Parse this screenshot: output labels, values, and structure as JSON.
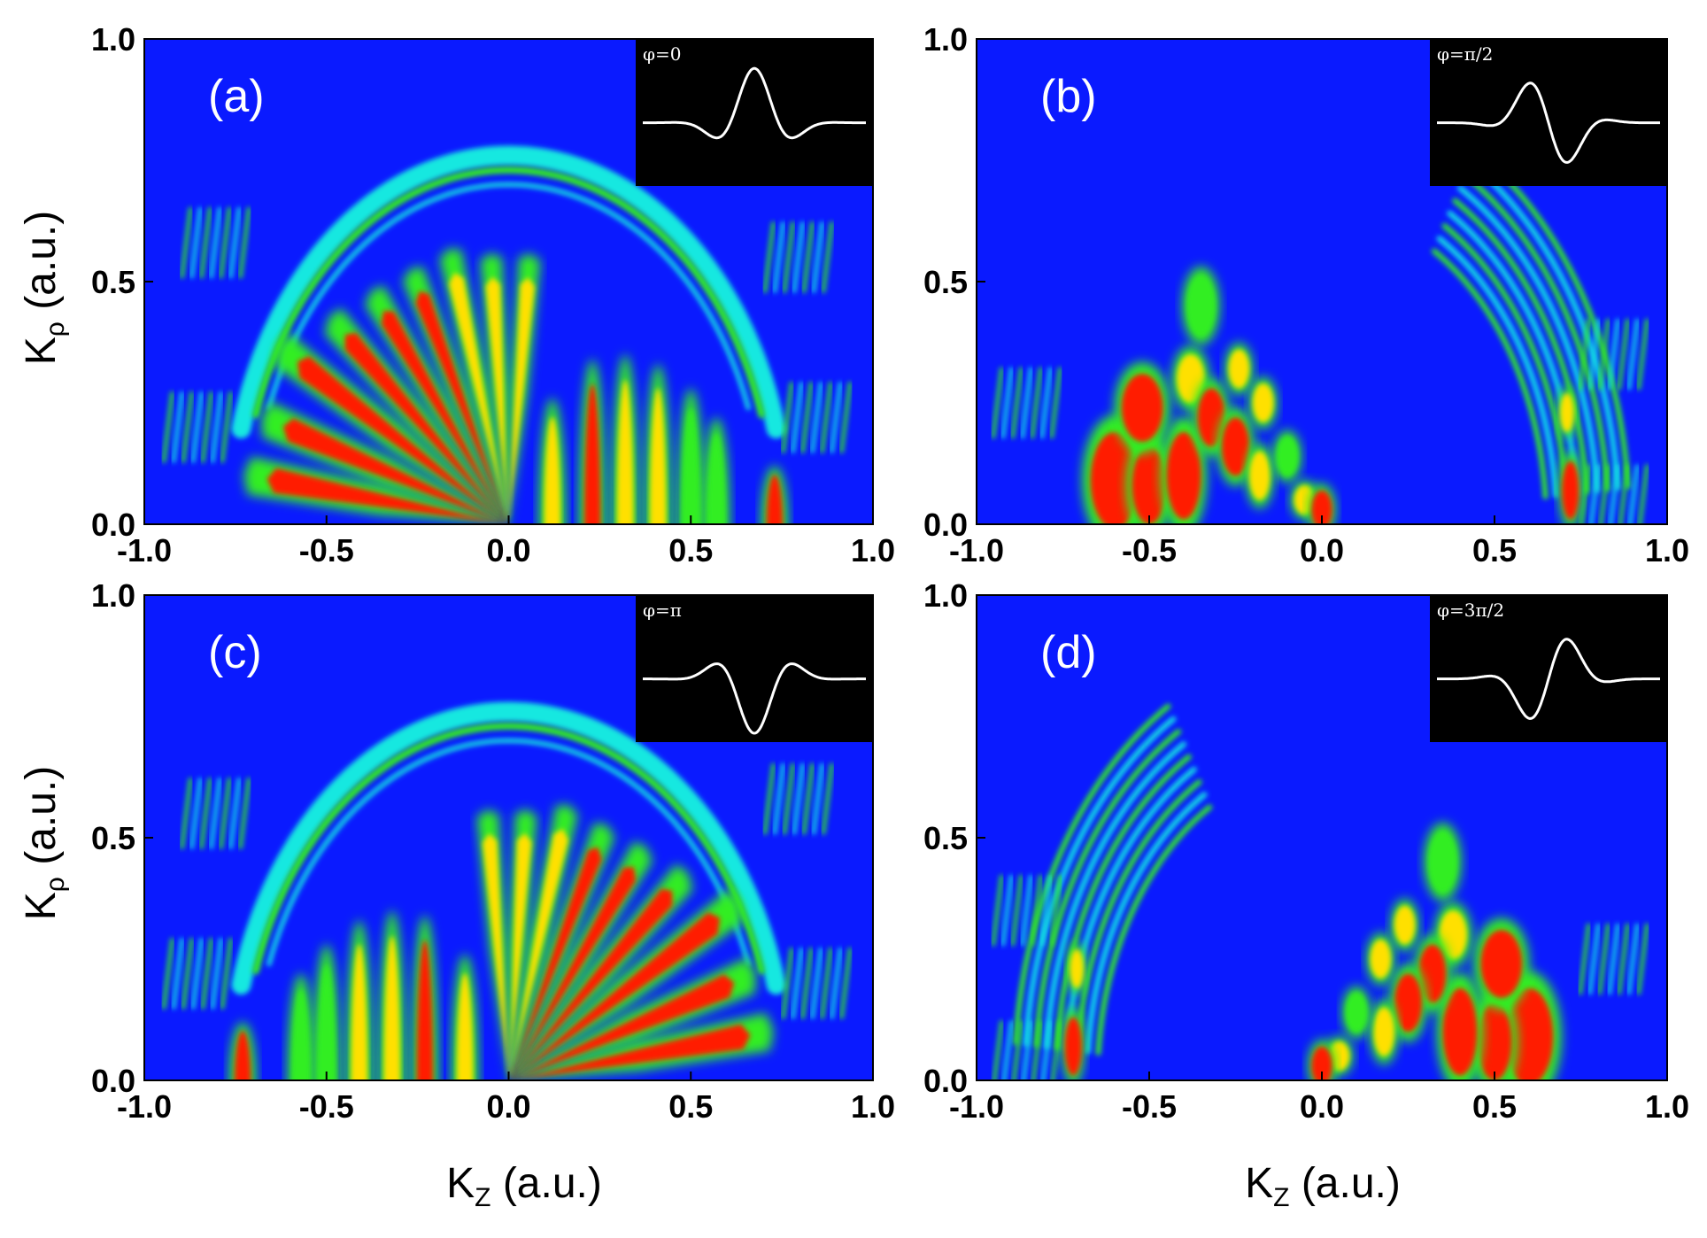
{
  "chart_data": {
    "type": "heatmap",
    "colors": {
      "background": "#0a1aff",
      "low": "#15e8e0",
      "mid": "#33ee22",
      "high": "#ffe000",
      "peak": "#ff1a00",
      "inset_background": "#000000",
      "inset_line": "#ffffff"
    },
    "xlabel_left": "K",
    "xlabel_left_sub": "Z",
    "xlabel_left_unit": " (a.u.)",
    "xlabel_right": "K",
    "xlabel_right_sub": "Z",
    "xlabel_right_unit": " (a.u.)",
    "ylabel_top": "K",
    "ylabel_top_sub": "ρ",
    "ylabel_top_unit": " (a.u.)",
    "ylabel_bottom": "K",
    "ylabel_bottom_sub": "ρ",
    "ylabel_bottom_unit": " (a.u.)",
    "xlim": [
      -1.0,
      1.0
    ],
    "ylim": [
      0.0,
      1.0
    ],
    "x_ticks": [
      "-1.0",
      "-0.5",
      "0.0",
      "0.5",
      "1.0"
    ],
    "y_ticks": [
      "0.0",
      "0.5",
      "1.0"
    ],
    "panels": [
      {
        "label": "(a)",
        "phase_label": "φ=0",
        "phase": 0.0,
        "lobes": [
          {
            "angle_deg": 172,
            "r_end": 0.72,
            "level": 4
          },
          {
            "angle_deg": 162,
            "r_end": 0.7,
            "level": 4
          },
          {
            "angle_deg": 150,
            "r_end": 0.72,
            "level": 4
          },
          {
            "angle_deg": 139,
            "r_end": 0.64,
            "level": 4
          },
          {
            "angle_deg": 128,
            "r_end": 0.6,
            "level": 4
          },
          {
            "angle_deg": 117,
            "r_end": 0.58,
            "level": 4
          },
          {
            "angle_deg": 106,
            "r_end": 0.58,
            "level": 3
          },
          {
            "angle_deg": 95,
            "r_end": 0.55,
            "level": 3
          },
          {
            "angle_deg": 84,
            "r_end": 0.55,
            "level": 3
          }
        ],
        "fingers": [
          {
            "x": 0.12,
            "height": 0.26,
            "level": 3
          },
          {
            "x": 0.23,
            "height": 0.34,
            "level": 4
          },
          {
            "x": 0.32,
            "height": 0.35,
            "level": 3
          },
          {
            "x": 0.41,
            "height": 0.33,
            "level": 3
          },
          {
            "x": 0.5,
            "height": 0.28,
            "level": 2
          },
          {
            "x": 0.57,
            "height": 0.22,
            "level": 2
          },
          {
            "x": 0.73,
            "height": 0.12,
            "level": 4
          }
        ],
        "ring_side": "both",
        "outer_strips": [
          {
            "x": -0.85,
            "y": 0.2
          },
          {
            "x": -0.8,
            "y": 0.58
          },
          {
            "x": 0.85,
            "y": 0.22
          },
          {
            "x": 0.8,
            "y": 0.55
          }
        ]
      },
      {
        "label": "(b)",
        "phase_label": "φ=π/2",
        "phase": 1.5708,
        "blobs": [
          {
            "x": -0.6,
            "y": 0.09,
            "rx": 0.07,
            "ry": 0.1,
            "level": 4
          },
          {
            "x": -0.5,
            "y": 0.08,
            "rx": 0.05,
            "ry": 0.08,
            "level": 4
          },
          {
            "x": -0.52,
            "y": 0.24,
            "rx": 0.06,
            "ry": 0.07,
            "level": 4
          },
          {
            "x": -0.4,
            "y": 0.1,
            "rx": 0.05,
            "ry": 0.09,
            "level": 4
          },
          {
            "x": -0.38,
            "y": 0.3,
            "rx": 0.04,
            "ry": 0.05,
            "level": 3
          },
          {
            "x": -0.32,
            "y": 0.22,
            "rx": 0.04,
            "ry": 0.06,
            "level": 4
          },
          {
            "x": -0.35,
            "y": 0.45,
            "rx": 0.04,
            "ry": 0.06,
            "level": 2
          },
          {
            "x": -0.25,
            "y": 0.16,
            "rx": 0.04,
            "ry": 0.06,
            "level": 4
          },
          {
            "x": -0.24,
            "y": 0.32,
            "rx": 0.03,
            "ry": 0.04,
            "level": 3
          },
          {
            "x": -0.18,
            "y": 0.1,
            "rx": 0.03,
            "ry": 0.05,
            "level": 3
          },
          {
            "x": -0.17,
            "y": 0.25,
            "rx": 0.03,
            "ry": 0.04,
            "level": 3
          },
          {
            "x": -0.1,
            "y": 0.14,
            "rx": 0.03,
            "ry": 0.04,
            "level": 2
          },
          {
            "x": -0.05,
            "y": 0.05,
            "rx": 0.03,
            "ry": 0.03,
            "level": 3
          },
          {
            "x": 0.0,
            "y": 0.03,
            "rx": 0.03,
            "ry": 0.04,
            "level": 4
          },
          {
            "x": 0.72,
            "y": 0.07,
            "rx": 0.025,
            "ry": 0.06,
            "level": 4
          },
          {
            "x": 0.71,
            "y": 0.23,
            "rx": 0.02,
            "ry": 0.04,
            "level": 3
          }
        ],
        "ring_side": "right",
        "outer_strips": [
          {
            "x": -0.85,
            "y": 0.25
          },
          {
            "x": 0.85,
            "y": 0.05
          },
          {
            "x": 0.85,
            "y": 0.35
          }
        ]
      },
      {
        "label": "(c)",
        "phase_label": "φ=π",
        "phase": 3.1416,
        "lobes": [
          {
            "angle_deg": 8,
            "r_end": 0.72,
            "level": 4
          },
          {
            "angle_deg": 18,
            "r_end": 0.7,
            "level": 4
          },
          {
            "angle_deg": 30,
            "r_end": 0.72,
            "level": 4
          },
          {
            "angle_deg": 41,
            "r_end": 0.64,
            "level": 4
          },
          {
            "angle_deg": 52,
            "r_end": 0.6,
            "level": 4
          },
          {
            "angle_deg": 63,
            "r_end": 0.58,
            "level": 4
          },
          {
            "angle_deg": 74,
            "r_end": 0.58,
            "level": 3
          },
          {
            "angle_deg": 85,
            "r_end": 0.55,
            "level": 3
          },
          {
            "angle_deg": 96,
            "r_end": 0.55,
            "level": 3
          }
        ],
        "fingers": [
          {
            "x": -0.12,
            "height": 0.26,
            "level": 3
          },
          {
            "x": -0.23,
            "height": 0.34,
            "level": 4
          },
          {
            "x": -0.32,
            "height": 0.35,
            "level": 3
          },
          {
            "x": -0.41,
            "height": 0.33,
            "level": 3
          },
          {
            "x": -0.5,
            "height": 0.28,
            "level": 2
          },
          {
            "x": -0.57,
            "height": 0.22,
            "level": 2
          },
          {
            "x": -0.73,
            "height": 0.12,
            "level": 4
          }
        ],
        "ring_side": "both",
        "outer_strips": [
          {
            "x": 0.85,
            "y": 0.2
          },
          {
            "x": 0.8,
            "y": 0.58
          },
          {
            "x": -0.85,
            "y": 0.22
          },
          {
            "x": -0.8,
            "y": 0.55
          }
        ]
      },
      {
        "label": "(d)",
        "phase_label": "φ=3π/2",
        "phase": 4.7124,
        "blobs": [
          {
            "x": 0.6,
            "y": 0.09,
            "rx": 0.07,
            "ry": 0.1,
            "level": 4
          },
          {
            "x": 0.5,
            "y": 0.08,
            "rx": 0.05,
            "ry": 0.08,
            "level": 4
          },
          {
            "x": 0.52,
            "y": 0.24,
            "rx": 0.06,
            "ry": 0.07,
            "level": 4
          },
          {
            "x": 0.4,
            "y": 0.1,
            "rx": 0.05,
            "ry": 0.09,
            "level": 4
          },
          {
            "x": 0.38,
            "y": 0.3,
            "rx": 0.04,
            "ry": 0.05,
            "level": 3
          },
          {
            "x": 0.32,
            "y": 0.22,
            "rx": 0.04,
            "ry": 0.06,
            "level": 4
          },
          {
            "x": 0.35,
            "y": 0.45,
            "rx": 0.04,
            "ry": 0.06,
            "level": 2
          },
          {
            "x": 0.25,
            "y": 0.16,
            "rx": 0.04,
            "ry": 0.06,
            "level": 4
          },
          {
            "x": 0.24,
            "y": 0.32,
            "rx": 0.03,
            "ry": 0.04,
            "level": 3
          },
          {
            "x": 0.18,
            "y": 0.1,
            "rx": 0.03,
            "ry": 0.05,
            "level": 3
          },
          {
            "x": 0.17,
            "y": 0.25,
            "rx": 0.03,
            "ry": 0.04,
            "level": 3
          },
          {
            "x": 0.1,
            "y": 0.14,
            "rx": 0.03,
            "ry": 0.04,
            "level": 2
          },
          {
            "x": 0.05,
            "y": 0.05,
            "rx": 0.03,
            "ry": 0.03,
            "level": 3
          },
          {
            "x": 0.0,
            "y": 0.03,
            "rx": 0.03,
            "ry": 0.04,
            "level": 4
          },
          {
            "x": -0.72,
            "y": 0.07,
            "rx": 0.025,
            "ry": 0.06,
            "level": 4
          },
          {
            "x": -0.71,
            "y": 0.23,
            "rx": 0.02,
            "ry": 0.04,
            "level": 3
          }
        ],
        "ring_side": "left",
        "outer_strips": [
          {
            "x": 0.85,
            "y": 0.25
          },
          {
            "x": -0.85,
            "y": 0.05
          },
          {
            "x": -0.85,
            "y": 0.35
          }
        ]
      }
    ]
  }
}
